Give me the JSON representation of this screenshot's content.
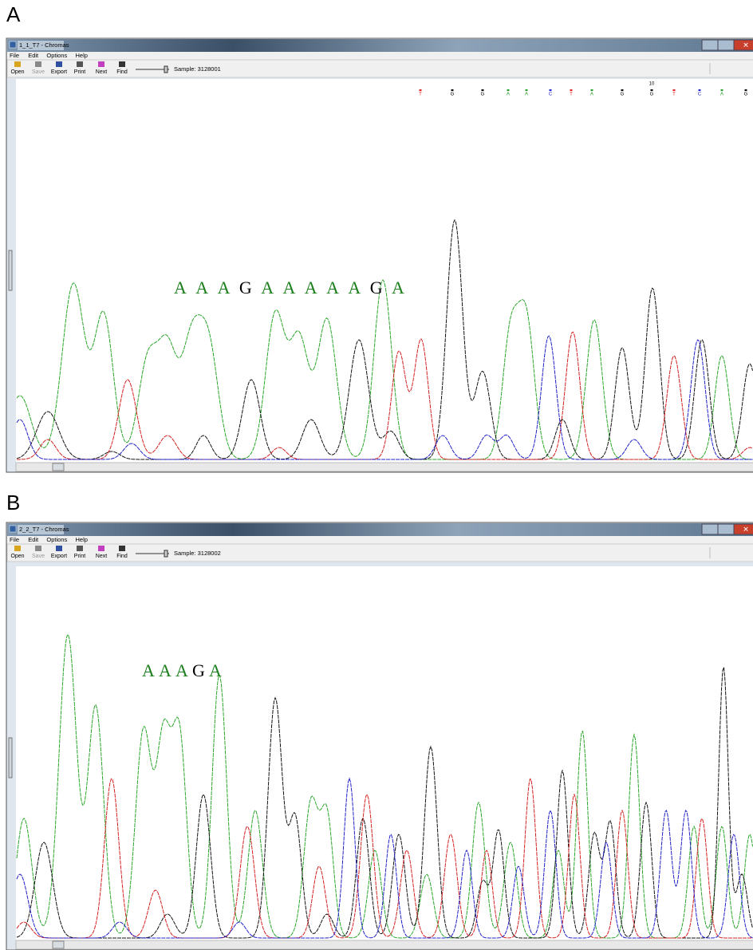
{
  "panels": [
    {
      "label": "A",
      "window_title": "1_1_T7 - Chromas",
      "menu": [
        "File",
        "Edit",
        "Options",
        "Help"
      ],
      "toolbar": [
        "Open",
        "Save",
        "Export",
        "Print",
        "Next",
        "Find"
      ],
      "sample": "Sample: 3128001",
      "base_calls": [
        "T",
        "G",
        "G",
        "A",
        "A",
        "C",
        "T",
        "A",
        "G",
        "G",
        "T",
        "C",
        "A",
        "G"
      ],
      "base_index": "10",
      "annotation": [
        "A",
        "A",
        "A",
        "G",
        "A",
        "A",
        "A",
        "A",
        "A",
        "G",
        "A"
      ]
    },
    {
      "label": "B",
      "window_title": "2_2_T7 - Chromas",
      "menu": [
        "File",
        "Edit",
        "Options",
        "Help"
      ],
      "toolbar": [
        "Open",
        "Save",
        "Export",
        "Print",
        "Next",
        "Find"
      ],
      "sample": "Sample: 3128002",
      "annotation": [
        "A",
        "A",
        "A",
        "G",
        "A"
      ]
    }
  ]
}
